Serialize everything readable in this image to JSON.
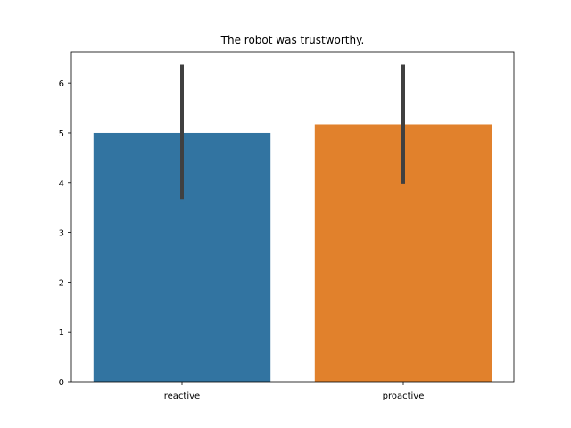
{
  "chart_data": {
    "type": "bar",
    "title": "The robot was trustworthy.",
    "xlabel": "",
    "ylabel": "",
    "categories": [
      "reactive",
      "proactive"
    ],
    "values": [
      5.0,
      5.17
    ],
    "error_bars": [
      {
        "low": 3.67,
        "high": 6.37
      },
      {
        "low": 3.98,
        "high": 6.37
      }
    ],
    "bar_colors": [
      "#3274a1",
      "#e1812c"
    ],
    "error_color": "#404040",
    "ylim": [
      0,
      6.63
    ],
    "yticks": [
      0,
      1,
      2,
      3,
      4,
      5,
      6
    ],
    "grid": false,
    "legend": "none"
  }
}
